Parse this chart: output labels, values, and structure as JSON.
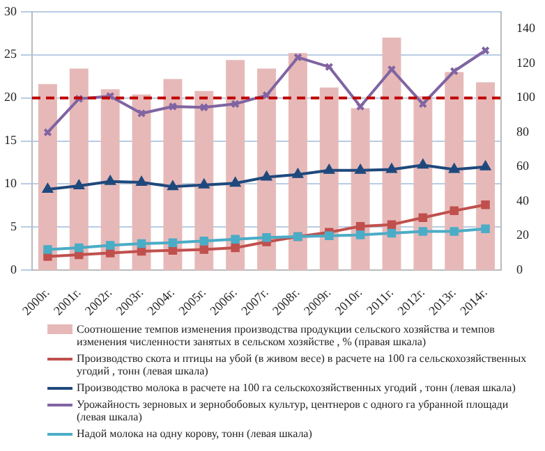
{
  "chart_data": {
    "type": "bar",
    "categories": [
      "2000г.",
      "2001г.",
      "2002г.",
      "2003г.",
      "2004г.",
      "2005г.",
      "2006г.",
      "2007г.",
      "2008г.",
      "2009г.",
      "2010г.",
      "2011г.",
      "2012г.",
      "2013г.",
      "2014г."
    ],
    "series": [
      {
        "name": "Соотношение темпов изменения производства продукции сельского хозяйства и темпов изменения численности занятых в сельском хозяйстве , % (правая шкала)",
        "axis": "y2",
        "color": "#e6b9b8",
        "values": [
          108,
          117,
          105,
          102,
          111,
          104,
          122,
          117,
          126,
          106,
          94,
          135,
          101,
          115,
          109
        ]
      },
      {
        "name": "Производство скота и птицы на убой (в живом весе) в расчете на 100 га сельскохозяйственных угодий , тонн (левая шкала)",
        "type": "line",
        "marker": "square",
        "color": "#c0504d",
        "values": [
          1.6,
          1.8,
          2.0,
          2.2,
          2.3,
          2.4,
          2.6,
          3.3,
          3.9,
          4.4,
          5.1,
          5.3,
          6.1,
          6.9,
          7.6
        ]
      },
      {
        "name": "Производство молока в расчете на 100 га сельскохозяйственных угодий , тонн (левая шкала)",
        "type": "line",
        "marker": "triangle",
        "color": "#1f497d",
        "values": [
          9.4,
          9.8,
          10.3,
          10.2,
          9.7,
          9.9,
          10.1,
          10.8,
          11.1,
          11.6,
          11.6,
          11.7,
          12.2,
          11.7,
          12.0
        ]
      },
      {
        "name": "Урожайность зерновых и зернобобовых культур, центнеров с одного га убранной площади (левая шкала)",
        "type": "line",
        "marker": "cross",
        "color": "#8064a2",
        "values": [
          16.0,
          19.9,
          20.2,
          18.2,
          19.0,
          18.9,
          19.3,
          20.3,
          24.7,
          23.6,
          19.0,
          23.3,
          19.3,
          23.1,
          25.5
        ]
      },
      {
        "name": "Надой молока на одну корову, тонн (левая шкала)",
        "type": "line",
        "marker": "square",
        "color": "#4bacc6",
        "values": [
          2.4,
          2.6,
          2.9,
          3.1,
          3.2,
          3.4,
          3.6,
          3.8,
          3.9,
          4.0,
          4.1,
          4.3,
          4.5,
          4.5,
          4.8
        ]
      }
    ],
    "ylim": [
      0,
      30
    ],
    "yticks": [
      0,
      5,
      10,
      15,
      20,
      25,
      30
    ],
    "y2lim": [
      0,
      150
    ],
    "y2ticks": [
      0,
      20,
      40,
      60,
      80,
      100,
      120,
      140
    ],
    "ref_lines": [
      {
        "axis": "y2",
        "value": 100,
        "color": "#c00000",
        "line_style": "dashed"
      }
    ],
    "grid": "y",
    "legend": "bottom"
  }
}
